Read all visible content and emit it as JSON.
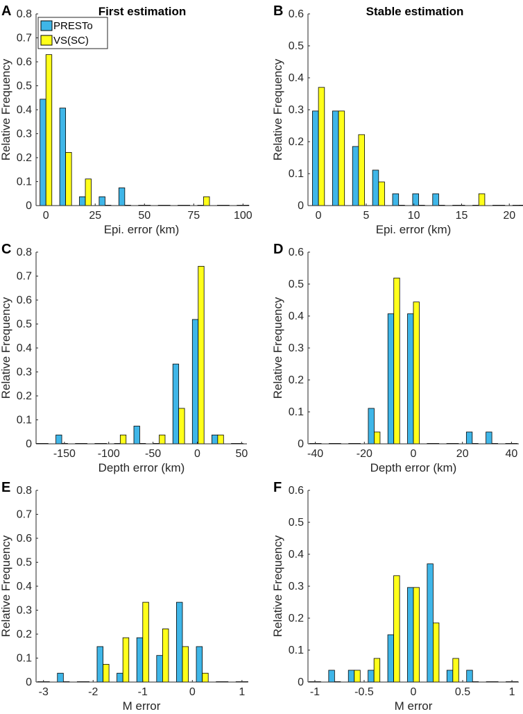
{
  "figure": {
    "column_titles": [
      "First estimation",
      "Stable estimation"
    ],
    "legend": {
      "entries": [
        "PRESTo",
        "VS(SC)"
      ],
      "colors": [
        "#3FB6E8",
        "#FFFF1A"
      ]
    }
  },
  "chart_data": [
    {
      "panel": "A",
      "type": "bar",
      "title": "First estimation",
      "xlabel": "Epi. error (km)",
      "ylabel": "Relative Frequency",
      "xlim": [
        -5,
        102
      ],
      "ylim": [
        0,
        0.8
      ],
      "xticks": [
        0,
        25,
        50,
        75,
        100
      ],
      "xticklabels": [
        "0",
        "25",
        "50",
        "75",
        "100"
      ],
      "yticks": [
        0,
        0.1,
        0.2,
        0.3,
        0.4,
        0.5,
        0.6,
        0.7,
        0.8
      ],
      "yticklabels": [
        "0",
        "0.1",
        "0.2",
        "0.3",
        "0.4",
        "0.5",
        "0.6",
        "0.7",
        "0.8"
      ],
      "x": [
        0,
        10,
        20,
        30,
        40,
        50,
        60,
        70,
        80,
        90,
        100
      ],
      "series": [
        {
          "name": "PRESTo",
          "values": [
            0.444,
            0.407,
            0.037,
            0.037,
            0.074,
            0,
            0,
            0,
            0,
            0,
            0
          ]
        },
        {
          "name": "VS(SC)",
          "values": [
            0.63,
            0.222,
            0.111,
            0,
            0,
            0,
            0,
            0,
            0.037,
            0,
            0
          ]
        }
      ]
    },
    {
      "panel": "B",
      "type": "bar",
      "title": "Stable estimation",
      "xlabel": "Epi. error (km)",
      "ylabel": "Relative Frequency",
      "xlim": [
        -1.1,
        21
      ],
      "ylim": [
        0,
        0.6
      ],
      "xticks": [
        0,
        5,
        10,
        15,
        20
      ],
      "xticklabels": [
        "0",
        "5",
        "10",
        "15",
        "20"
      ],
      "yticks": [
        0,
        0.1,
        0.2,
        0.3,
        0.4,
        0.5,
        0.6
      ],
      "yticklabels": [
        "0",
        "0.1",
        "0.2",
        "0.3",
        "0.4",
        "0.5",
        "0.6"
      ],
      "x": [
        0,
        2.1,
        4.2,
        6.3,
        8.4,
        10.5,
        12.6,
        14.7,
        16.8,
        18.9,
        21
      ],
      "series": [
        {
          "name": "PRESTo",
          "values": [
            0.296,
            0.296,
            0.185,
            0.111,
            0.037,
            0.037,
            0.037,
            0,
            0,
            0,
            0
          ]
        },
        {
          "name": "VS(SC)",
          "values": [
            0.37,
            0.296,
            0.222,
            0.074,
            0,
            0,
            0,
            0,
            0.037,
            0,
            0
          ]
        }
      ]
    },
    {
      "panel": "C",
      "type": "bar",
      "title": "",
      "xlabel": "Depth error (km)",
      "ylabel": "Relative Frequency",
      "xlim": [
        -182,
        56
      ],
      "ylim": [
        0,
        0.8
      ],
      "xticks": [
        -150,
        -100,
        -50,
        0,
        50
      ],
      "xticklabels": [
        "-150",
        "-100",
        "-50",
        "0",
        "50"
      ],
      "yticks": [
        0,
        0.1,
        0.2,
        0.3,
        0.4,
        0.5,
        0.6,
        0.7,
        0.8
      ],
      "yticklabels": [
        "0",
        "0.1",
        "0.2",
        "0.3",
        "0.4",
        "0.5",
        "0.6",
        "0.7",
        "0.8"
      ],
      "x": [
        -175,
        -153,
        -131,
        -109,
        -87,
        -65,
        -43,
        -21,
        1,
        23,
        45
      ],
      "series": [
        {
          "name": "PRESTo",
          "values": [
            0,
            0.037,
            0,
            0,
            0,
            0.074,
            0,
            0.333,
            0.519,
            0.037,
            0
          ]
        },
        {
          "name": "VS(SC)",
          "values": [
            0,
            0,
            0,
            0,
            0.037,
            0,
            0.037,
            0.148,
            0.741,
            0.037,
            0
          ]
        }
      ]
    },
    {
      "panel": "D",
      "type": "bar",
      "title": "",
      "xlabel": "Depth error (km)",
      "ylabel": "Relative Frequency",
      "xlim": [
        -43,
        43
      ],
      "ylim": [
        0,
        0.6
      ],
      "xticks": [
        -40,
        -20,
        0,
        20,
        40
      ],
      "xticklabels": [
        "-40",
        "-20",
        "0",
        "20",
        "40"
      ],
      "yticks": [
        0,
        0.1,
        0.2,
        0.3,
        0.4,
        0.5,
        0.6
      ],
      "yticklabels": [
        "0",
        "0.1",
        "0.2",
        "0.3",
        "0.4",
        "0.5",
        "0.6"
      ],
      "x": [
        -40,
        -32,
        -24,
        -16,
        -8,
        0,
        8,
        16,
        24,
        32,
        40
      ],
      "series": [
        {
          "name": "PRESTo",
          "values": [
            0,
            0,
            0,
            0.111,
            0.407,
            0.407,
            0,
            0,
            0.037,
            0.037,
            0
          ]
        },
        {
          "name": "VS(SC)",
          "values": [
            0,
            0,
            0,
            0.037,
            0.519,
            0.444,
            0,
            0,
            0,
            0,
            0
          ]
        }
      ]
    },
    {
      "panel": "E",
      "type": "bar",
      "title": "",
      "xlabel": "M error",
      "ylabel": "Relative Frequency",
      "xlim": [
        -3.15,
        1.1
      ],
      "ylim": [
        0,
        0.8
      ],
      "xticks": [
        -3,
        -2,
        -1,
        0,
        1
      ],
      "xticklabels": [
        "-3",
        "-2",
        "-1",
        "0",
        "1"
      ],
      "yticks": [
        0,
        0.1,
        0.2,
        0.3,
        0.4,
        0.5,
        0.6,
        0.7,
        0.8
      ],
      "yticklabels": [
        "0",
        "0.1",
        "0.2",
        "0.3",
        "0.4",
        "0.5",
        "0.6",
        "0.7",
        "0.8"
      ],
      "x": [
        -3,
        -2.6,
        -2.2,
        -1.8,
        -1.4,
        -1.0,
        -0.6,
        -0.2,
        0.2,
        0.6,
        1.0
      ],
      "series": [
        {
          "name": "PRESTo",
          "values": [
            0,
            0.037,
            0,
            0.148,
            0.037,
            0.185,
            0.111,
            0.333,
            0.148,
            0,
            0
          ]
        },
        {
          "name": "VS(SC)",
          "values": [
            0,
            0,
            0,
            0.074,
            0.185,
            0.333,
            0.222,
            0.148,
            0.037,
            0,
            0
          ]
        }
      ]
    },
    {
      "panel": "F",
      "type": "bar",
      "title": "",
      "xlabel": "M error",
      "ylabel": "Relative Frequency",
      "xlim": [
        -1.07,
        1.07
      ],
      "ylim": [
        0,
        0.6
      ],
      "xticks": [
        -1,
        -0.5,
        0,
        0.5,
        1
      ],
      "xticklabels": [
        "-1",
        "-0.5",
        "0",
        "0.5",
        "1"
      ],
      "yticks": [
        0,
        0.1,
        0.2,
        0.3,
        0.4,
        0.5,
        0.6
      ],
      "yticklabels": [
        "0",
        "0.1",
        "0.2",
        "0.3",
        "0.4",
        "0.5",
        "0.6"
      ],
      "x": [
        -1.0,
        -0.8,
        -0.6,
        -0.4,
        -0.2,
        0.0,
        0.2,
        0.4,
        0.6,
        0.8,
        1.0
      ],
      "series": [
        {
          "name": "PRESTo",
          "values": [
            0,
            0.037,
            0.037,
            0.037,
            0.148,
            0.296,
            0.37,
            0.037,
            0.037,
            0,
            0
          ]
        },
        {
          "name": "VS(SC)",
          "values": [
            0,
            0,
            0.037,
            0.074,
            0.333,
            0.296,
            0.185,
            0.074,
            0,
            0,
            0
          ]
        }
      ]
    }
  ]
}
